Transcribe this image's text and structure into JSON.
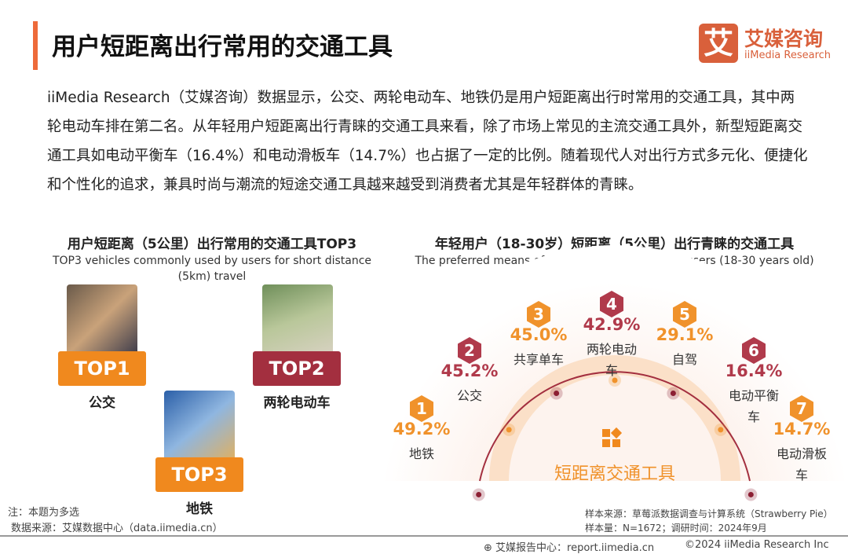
{
  "header": {
    "title": "用户短距离出行常用的交通工具",
    "logo_mark": "艾",
    "logo_cn": "艾媒咨询",
    "logo_en": "iiMedia Research"
  },
  "intro": "iiMedia Research（艾媒咨询）数据显示，公交、两轮电动车、地铁仍是用户短距离出行时常用的交通工具，其中两轮电动车排在第二名。从年轻用户短距离出行青睐的交通工具来看，除了市场上常见的主流交通工具外，新型短距离交通工具如电动平衡车（16.4%）和电动滑板车（14.7%）也占据了一定的比例。随着现代人对出行方式多元化、便捷化和个性化的追求，兼具时尚与潮流的短途交通工具越来越受到消费者尤其是年轻群体的青睐。",
  "left": {
    "title_cn": "用户短距离（5公里）出行常用的交通工具TOP3",
    "title_en": "TOP3 vehicles commonly used by users for short distance (5km) travel",
    "items": [
      {
        "tag": "TOP1",
        "label": "公交",
        "color": "#f0891e"
      },
      {
        "tag": "TOP2",
        "label": "两轮电动车",
        "color": "#a32f3f"
      },
      {
        "tag": "TOP3",
        "label": "地铁",
        "color": "#f0891e"
      }
    ]
  },
  "chart_data": {
    "type": "radial-ranking",
    "title": "年轻用户（18-30岁）短距离（5公里）出行青睐的交通工具",
    "subtitle": "The preferred means of transportation for young users (18-30 years old) for short distances (5 km)",
    "center_label": "短距离交通工具",
    "ranks": [
      "1",
      "2",
      "3",
      "4",
      "5",
      "6",
      "7"
    ],
    "categories": [
      "地铁",
      "公交",
      "共享单车",
      "两轮电动车",
      "自驾",
      "电动平衡车",
      "电动滑板车"
    ],
    "values": [
      49.2,
      45.2,
      45.0,
      42.9,
      29.1,
      16.4,
      14.7
    ],
    "value_labels": [
      "49.2%",
      "45.2%",
      "45.0%",
      "42.9%",
      "29.1%",
      "16.4%",
      "14.7%"
    ],
    "colors": {
      "odd": "#f0922b",
      "even": "#b03a4b",
      "band": "#fbe0c8"
    }
  },
  "footer": {
    "note": "注：本题为多选",
    "source": "数据来源：艾媒数据中心（data.iimedia.cn）",
    "sample_source": "样本来源：草莓派数据调查与计算系统（Strawberry Pie）",
    "sample_size": "样本量：N=1672；调研时间：2024年9月",
    "report": "艾媒报告中心：report.iimedia.cn",
    "copyright": "©2024  iiMedia Research  Inc"
  }
}
